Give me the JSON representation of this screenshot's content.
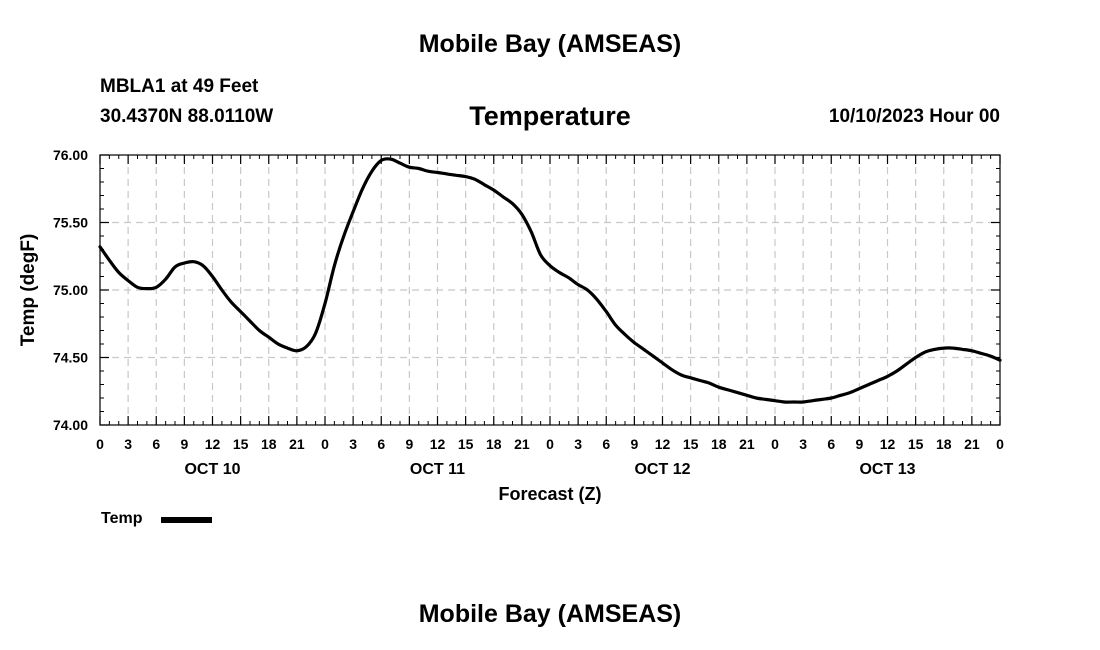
{
  "header": {
    "title": "Mobile Bay (AMSEAS)",
    "station": "MBLA1 at 49 Feet",
    "coordinates": "30.4370N  88.0110W",
    "variable": "Temperature",
    "datetime": "10/10/2023 Hour 00"
  },
  "footer": {
    "title": "Mobile Bay (AMSEAS)"
  },
  "legend": {
    "label": "Temp"
  },
  "chart_data": {
    "type": "line",
    "title": "Temperature",
    "xlabel": "Forecast (Z)",
    "ylabel": "Temp (degF)",
    "xlim": [
      0,
      96
    ],
    "ylim": [
      74.0,
      76.0
    ],
    "y_ticks": [
      "74.00",
      "74.50",
      "75.00",
      "75.50",
      "76.00"
    ],
    "x_tick_labels": [
      "0",
      "3",
      "6",
      "9",
      "12",
      "15",
      "18",
      "21",
      "0",
      "3",
      "6",
      "9",
      "12",
      "15",
      "18",
      "21",
      "0",
      "3",
      "6",
      "9",
      "12",
      "15",
      "18",
      "21",
      "0",
      "3",
      "6",
      "9",
      "12",
      "15",
      "18",
      "21",
      "0"
    ],
    "day_labels": [
      {
        "label": "OCT 10",
        "hour": 12
      },
      {
        "label": "OCT 11",
        "hour": 36
      },
      {
        "label": "OCT 12",
        "hour": 60
      },
      {
        "label": "OCT 13",
        "hour": 84
      }
    ],
    "grid": true,
    "series": [
      {
        "name": "Temp",
        "color": "#000000",
        "x": [
          0,
          1,
          2,
          3,
          4,
          5,
          6,
          7,
          8,
          9,
          10,
          11,
          12,
          13,
          14,
          15,
          16,
          17,
          18,
          19,
          20,
          21,
          22,
          23,
          24,
          25,
          26,
          27,
          28,
          29,
          30,
          31,
          32,
          33,
          34,
          35,
          36,
          37,
          38,
          39,
          40,
          41,
          42,
          43,
          44,
          45,
          46,
          47,
          48,
          49,
          50,
          51,
          52,
          53,
          54,
          55,
          56,
          57,
          58,
          59,
          60,
          61,
          62,
          63,
          64,
          65,
          66,
          67,
          68,
          69,
          70,
          71,
          72,
          73,
          74,
          75,
          76,
          77,
          78,
          79,
          80,
          81,
          82,
          83,
          84,
          85,
          86,
          87,
          88,
          89,
          90,
          91,
          92,
          93,
          94,
          95,
          96
        ],
        "values": [
          75.32,
          75.22,
          75.13,
          75.07,
          75.02,
          75.01,
          75.02,
          75.08,
          75.17,
          75.2,
          75.21,
          75.18,
          75.1,
          75.0,
          74.91,
          74.84,
          74.77,
          74.7,
          74.65,
          74.6,
          74.57,
          74.55,
          74.58,
          74.68,
          74.9,
          75.18,
          75.4,
          75.58,
          75.75,
          75.88,
          75.96,
          75.97,
          75.94,
          75.91,
          75.9,
          75.88,
          75.87,
          75.86,
          75.85,
          75.84,
          75.82,
          75.78,
          75.74,
          75.69,
          75.64,
          75.56,
          75.43,
          75.26,
          75.18,
          75.13,
          75.09,
          75.04,
          75.0,
          74.93,
          74.84,
          74.74,
          74.67,
          74.61,
          74.56,
          74.51,
          74.46,
          74.41,
          74.37,
          74.35,
          74.33,
          74.31,
          74.28,
          74.26,
          74.24,
          74.22,
          74.2,
          74.19,
          74.18,
          74.17,
          74.17,
          74.17,
          74.18,
          74.19,
          74.2,
          74.22,
          74.24,
          74.27,
          74.3,
          74.33,
          74.36,
          74.4,
          74.45,
          74.5,
          74.54,
          74.56,
          74.57,
          74.57,
          74.56,
          74.55,
          74.53,
          74.51,
          74.48
        ]
      }
    ]
  }
}
